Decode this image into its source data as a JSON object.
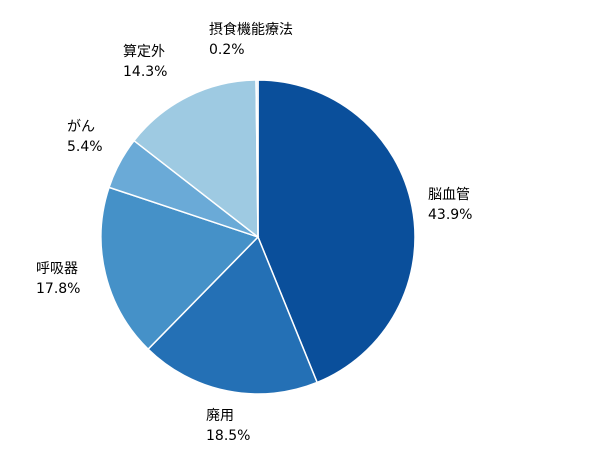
{
  "chart_data": {
    "type": "pie",
    "title": "",
    "legend": "none",
    "slices": [
      {
        "label": "脳血管",
        "value": 43.9,
        "value_text": "43.9%",
        "color": "#0a4f9b"
      },
      {
        "label": "廃用",
        "value": 18.5,
        "value_text": "18.5%",
        "color": "#2470b5"
      },
      {
        "label": "呼吸器",
        "value": 17.8,
        "value_text": "17.8%",
        "color": "#4591c8"
      },
      {
        "label": "がん",
        "value": 5.4,
        "value_text": "5.4%",
        "color": "#6aaad7"
      },
      {
        "label": "算定外",
        "value": 14.3,
        "value_text": "14.3%",
        "color": "#9ecae2"
      },
      {
        "label": "摂食機能療法",
        "value": 0.2,
        "value_text": "0.2%",
        "color": "#c7ddf0"
      }
    ]
  }
}
